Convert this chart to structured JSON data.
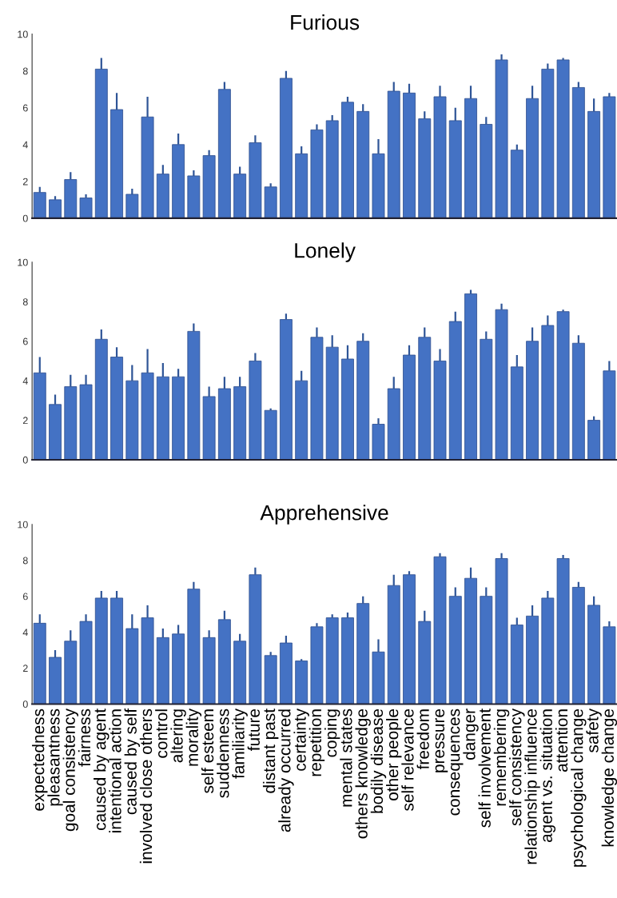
{
  "chart_data": [
    {
      "type": "bar",
      "title": "Furious",
      "tick_labels": "y",
      "ylim": [
        0,
        10
      ],
      "yticks": [
        0,
        2,
        4,
        6,
        8,
        10
      ],
      "color": "#4472c4",
      "grid": false,
      "categories": [
        null,
        null,
        null,
        null,
        null,
        null,
        null,
        null,
        null,
        null,
        null,
        null,
        null,
        null,
        null,
        null,
        null,
        null,
        null,
        null,
        null,
        null,
        null,
        null,
        null,
        null,
        null,
        null,
        null,
        null,
        null,
        null,
        null,
        null,
        null,
        null,
        null,
        null
      ],
      "values": [
        1.4,
        1.0,
        2.1,
        1.1,
        8.1,
        5.9,
        1.3,
        5.5,
        2.4,
        4.0,
        2.3,
        3.4,
        7.0,
        2.4,
        4.1,
        1.7,
        7.6,
        3.5,
        4.8,
        5.3,
        6.3,
        5.8,
        3.5,
        6.9,
        6.8,
        5.4,
        6.6,
        5.3,
        6.5,
        5.1,
        8.6,
        3.7,
        6.5,
        8.1,
        8.6,
        7.1,
        5.8,
        6.6
      ],
      "errors": [
        [
          1.4,
          1.7
        ],
        [
          1.0,
          1.2
        ],
        [
          2.1,
          2.5
        ],
        [
          1.1,
          1.3
        ],
        [
          8.1,
          8.7
        ],
        [
          5.9,
          6.8
        ],
        [
          1.3,
          1.6
        ],
        [
          5.5,
          6.6
        ],
        [
          2.4,
          2.9
        ],
        [
          4.0,
          4.6
        ],
        [
          2.3,
          2.6
        ],
        [
          3.4,
          3.7
        ],
        [
          7.0,
          7.4
        ],
        [
          2.4,
          2.8
        ],
        [
          4.1,
          4.5
        ],
        [
          1.7,
          1.9
        ],
        [
          7.6,
          8.0
        ],
        [
          3.5,
          3.9
        ],
        [
          4.8,
          5.1
        ],
        [
          5.3,
          5.6
        ],
        [
          6.3,
          6.6
        ],
        [
          5.8,
          6.2
        ],
        [
          3.5,
          4.3
        ],
        [
          6.9,
          7.4
        ],
        [
          6.8,
          7.3
        ],
        [
          5.4,
          5.8
        ],
        [
          6.6,
          7.2
        ],
        [
          5.3,
          6.0
        ],
        [
          6.5,
          7.2
        ],
        [
          5.1,
          5.5
        ],
        [
          8.6,
          8.9
        ],
        [
          3.7,
          4.0
        ],
        [
          6.5,
          7.2
        ],
        [
          8.1,
          8.4
        ],
        [
          8.6,
          8.7
        ],
        [
          7.1,
          7.4
        ],
        [
          5.8,
          6.5
        ],
        [
          6.6,
          6.8
        ]
      ]
    },
    {
      "type": "bar",
      "title": "Lonely",
      "tick_labels": "y",
      "ylim": [
        0,
        10
      ],
      "yticks": [
        0,
        2,
        4,
        6,
        8,
        10
      ],
      "color": "#4472c4",
      "grid": false,
      "categories": [
        null,
        null,
        null,
        null,
        null,
        null,
        null,
        null,
        null,
        null,
        null,
        null,
        null,
        null,
        null,
        null,
        null,
        null,
        null,
        null,
        null,
        null,
        null,
        null,
        null,
        null,
        null,
        null,
        null,
        null,
        null,
        null,
        null,
        null,
        null,
        null,
        null,
        null
      ],
      "values": [
        4.4,
        2.8,
        3.7,
        3.8,
        6.1,
        5.2,
        4.0,
        4.4,
        4.2,
        4.2,
        6.5,
        3.2,
        3.6,
        3.7,
        5.0,
        2.5,
        7.1,
        4.0,
        6.2,
        5.7,
        5.1,
        6.0,
        1.8,
        3.6,
        5.3,
        6.2,
        5.0,
        7.0,
        8.4,
        6.1,
        7.6,
        4.7,
        6.0,
        6.8,
        7.5,
        5.9,
        2.0,
        4.5
      ],
      "errors": [
        [
          4.4,
          5.2
        ],
        [
          2.8,
          3.3
        ],
        [
          3.7,
          4.3
        ],
        [
          3.8,
          4.3
        ],
        [
          6.1,
          6.6
        ],
        [
          5.2,
          5.7
        ],
        [
          4.0,
          4.8
        ],
        [
          4.4,
          5.6
        ],
        [
          4.2,
          4.9
        ],
        [
          4.2,
          4.6
        ],
        [
          6.5,
          6.9
        ],
        [
          3.2,
          3.7
        ],
        [
          3.6,
          4.2
        ],
        [
          3.7,
          4.2
        ],
        [
          5.0,
          5.4
        ],
        [
          2.5,
          2.6
        ],
        [
          7.1,
          7.4
        ],
        [
          4.0,
          4.5
        ],
        [
          6.2,
          6.7
        ],
        [
          5.7,
          6.3
        ],
        [
          5.1,
          5.8
        ],
        [
          6.0,
          6.4
        ],
        [
          1.8,
          2.1
        ],
        [
          3.6,
          4.2
        ],
        [
          5.3,
          5.8
        ],
        [
          6.2,
          6.7
        ],
        [
          5.0,
          5.6
        ],
        [
          7.0,
          7.5
        ],
        [
          8.4,
          8.6
        ],
        [
          6.1,
          6.5
        ],
        [
          7.6,
          7.9
        ],
        [
          4.7,
          5.3
        ],
        [
          6.0,
          6.7
        ],
        [
          6.8,
          7.3
        ],
        [
          7.5,
          7.6
        ],
        [
          5.9,
          6.3
        ],
        [
          2.0,
          2.2
        ],
        [
          4.5,
          5.0
        ]
      ]
    },
    {
      "type": "bar",
      "title": "Apprehensive",
      "ylim": [
        0,
        10
      ],
      "yticks": [
        0,
        2,
        4,
        6,
        8,
        10
      ],
      "color": "#4472c4",
      "grid": false,
      "categories": [
        "expectedness",
        "pleasantness",
        "goal consistency",
        "fairness",
        "caused by agent",
        "intentional action",
        "caused by self",
        "involved close others",
        "control",
        "altering",
        "morality",
        "self esteem",
        "suddenness",
        "familiarity",
        "future",
        "distant past",
        "already occurred",
        "certainty",
        "repetition",
        "coping",
        "mental states",
        "others knowledge",
        "bodily disease",
        "other people",
        "self relevance",
        "freedom",
        "pressure",
        "consequences",
        "danger",
        "self involvement",
        "remembering",
        "self consistency",
        "relationship influence",
        "agent vs. situation",
        "attention",
        "psychological change",
        "safety",
        "knowledge change"
      ],
      "values": [
        4.5,
        2.6,
        3.5,
        4.6,
        5.9,
        5.9,
        4.2,
        4.8,
        3.7,
        3.9,
        6.4,
        3.7,
        4.7,
        3.5,
        7.2,
        2.7,
        3.4,
        2.4,
        4.3,
        4.8,
        4.8,
        5.6,
        2.9,
        6.6,
        7.2,
        4.6,
        8.2,
        6.0,
        7.0,
        6.0,
        8.1,
        4.4,
        4.9,
        5.9,
        8.1,
        6.5,
        5.5,
        4.3
      ],
      "errors": [
        [
          4.5,
          5.0
        ],
        [
          2.6,
          3.0
        ],
        [
          3.5,
          4.1
        ],
        [
          4.6,
          5.0
        ],
        [
          5.9,
          6.3
        ],
        [
          5.9,
          6.3
        ],
        [
          4.2,
          5.0
        ],
        [
          4.8,
          5.5
        ],
        [
          3.7,
          4.2
        ],
        [
          3.9,
          4.4
        ],
        [
          6.4,
          6.8
        ],
        [
          3.7,
          4.1
        ],
        [
          4.7,
          5.2
        ],
        [
          3.5,
          3.9
        ],
        [
          7.2,
          7.6
        ],
        [
          2.7,
          2.9
        ],
        [
          3.4,
          3.8
        ],
        [
          2.4,
          2.5
        ],
        [
          4.3,
          4.5
        ],
        [
          4.8,
          5.0
        ],
        [
          4.8,
          5.1
        ],
        [
          5.6,
          6.0
        ],
        [
          2.9,
          3.6
        ],
        [
          6.6,
          7.2
        ],
        [
          7.2,
          7.4
        ],
        [
          4.6,
          5.2
        ],
        [
          8.2,
          8.4
        ],
        [
          6.0,
          6.5
        ],
        [
          7.0,
          7.6
        ],
        [
          6.0,
          6.5
        ],
        [
          8.1,
          8.4
        ],
        [
          4.4,
          4.8
        ],
        [
          4.9,
          5.5
        ],
        [
          5.9,
          6.3
        ],
        [
          8.1,
          8.3
        ],
        [
          6.5,
          6.8
        ],
        [
          5.5,
          6.0
        ],
        [
          4.3,
          4.6
        ]
      ]
    }
  ]
}
